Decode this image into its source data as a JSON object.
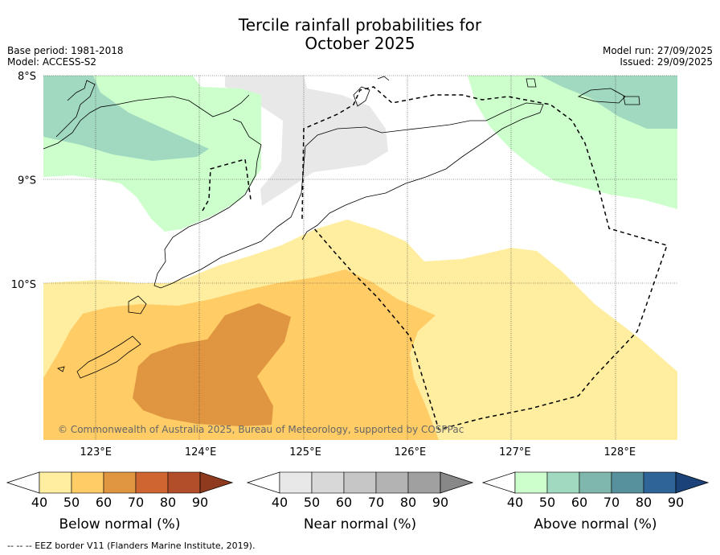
{
  "title_line1": "Tercile rainfall probabilities for",
  "title_line2": "October 2025",
  "meta": {
    "base_period": "Base period: 1981-2018",
    "model": "Model: ACCESS-S2",
    "model_run": "Model run: 27/09/2025",
    "issued": "Issued: 29/09/2025"
  },
  "copyright": "© Commonwealth of Australia 2025, Bureau of Meteorology, supported by COSPPac",
  "footer": "--  --  -- EEZ border V11 (Flanders Marine Institute, 2019).",
  "chart_data": {
    "type": "heatmap",
    "title": "Tercile rainfall probabilities for October 2025",
    "xlim": [
      122.5,
      128.55
    ],
    "ylim": [
      -11.5,
      -8.0
    ],
    "x_ticks": [
      123,
      124,
      125,
      126,
      127,
      128
    ],
    "x_tick_labels": [
      "123°E",
      "124°E",
      "125°E",
      "126°E",
      "127°E",
      "128°E"
    ],
    "y_ticks": [
      -8,
      -9,
      -10
    ],
    "y_tick_labels": [
      "8°S",
      "9°S",
      "10°S"
    ],
    "colorbars": [
      {
        "label": "Below normal (%)",
        "ticks": [
          "40",
          "50",
          "60",
          "70",
          "80",
          "90"
        ],
        "colors": [
          "#ffffff",
          "#ffeea0",
          "#ffcc66",
          "#e09540",
          "#cf6631",
          "#b24e2a",
          "#8f3a1e"
        ]
      },
      {
        "label": "Near normal (%)",
        "ticks": [
          "40",
          "50",
          "60",
          "70",
          "80",
          "90"
        ],
        "colors": [
          "#ffffff",
          "#e8e8e8",
          "#d8d8d8",
          "#c6c6c6",
          "#b3b3b3",
          "#a0a0a0",
          "#888888"
        ]
      },
      {
        "label": "Above normal (%)",
        "ticks": [
          "40",
          "50",
          "60",
          "70",
          "80",
          "90"
        ],
        "colors": [
          "#ffffff",
          "#ccffcc",
          "#a1d8c0",
          "#7fb7ad",
          "#57919e",
          "#2f6498",
          "#1b4379"
        ]
      }
    ]
  }
}
